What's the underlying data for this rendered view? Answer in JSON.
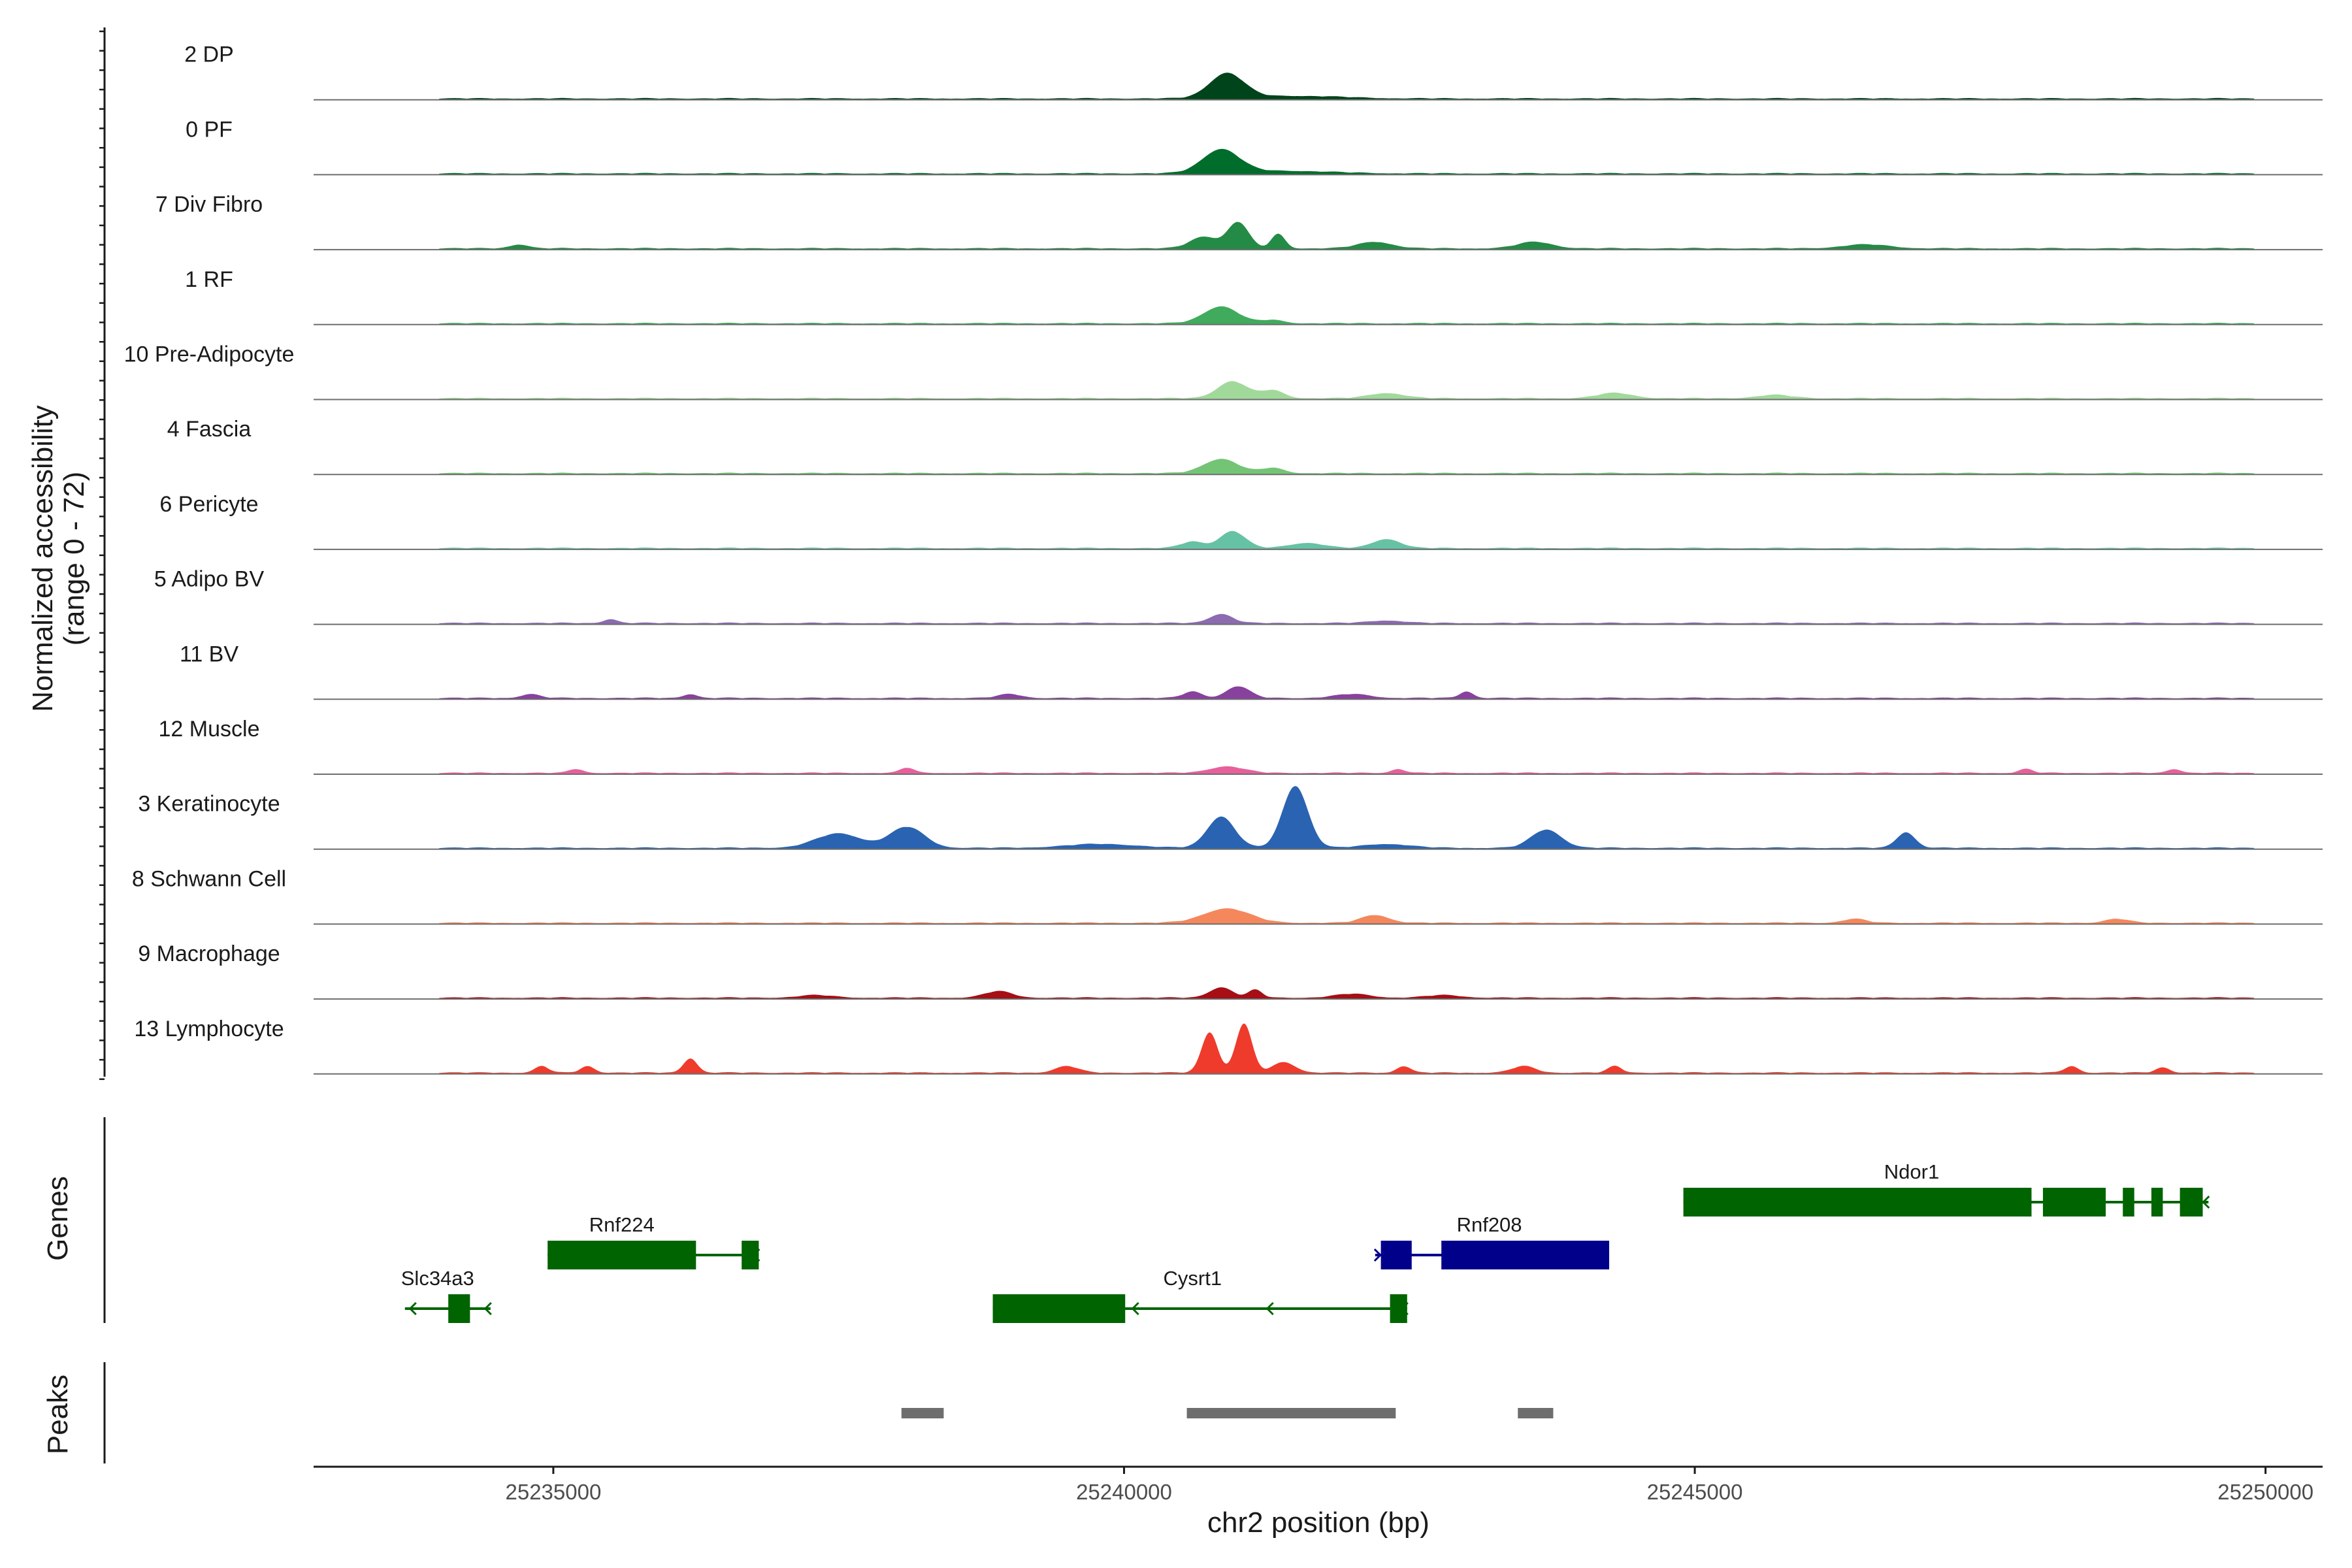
{
  "chart_data": {
    "type": "area",
    "title": "",
    "xlabel": "chr2 position (bp)",
    "ylabel": "Normalized accessibility",
    "ylabel_range": "(range 0 - 72)",
    "ylim": [
      0,
      72
    ],
    "xlim": [
      25232900,
      25250500
    ],
    "x_ticks": [
      25235000,
      25240000,
      25245000,
      25250000
    ],
    "x_tick_labels": [
      "25235000",
      "25240000",
      "25245000",
      "25250000"
    ],
    "tracks": [
      {
        "name": "2 DP",
        "color": "#00441b",
        "peaks": [
          [
            25240900,
            38,
            150
          ],
          [
            25241500,
            4,
            400
          ]
        ]
      },
      {
        "name": "0 PF",
        "color": "#006d2c",
        "peaks": [
          [
            25240850,
            36,
            160
          ],
          [
            25241400,
            4,
            400
          ]
        ]
      },
      {
        "name": "7 Div Fibro",
        "color": "#238b45",
        "peaks": [
          [
            25241000,
            40,
            90
          ],
          [
            25240700,
            18,
            120
          ],
          [
            25241350,
            22,
            60
          ],
          [
            25242200,
            10,
            150
          ],
          [
            25243600,
            10,
            150
          ],
          [
            25246500,
            6,
            200
          ],
          [
            25234700,
            6,
            80
          ]
        ]
      },
      {
        "name": "1 RF",
        "color": "#41ab5d",
        "peaks": [
          [
            25240850,
            26,
            150
          ],
          [
            25241300,
            5,
            100
          ]
        ]
      },
      {
        "name": "10 Pre-Adipocyte",
        "color": "#a1d99b",
        "peaks": [
          [
            25240950,
            26,
            130
          ],
          [
            25241300,
            12,
            100
          ],
          [
            25242300,
            8,
            150
          ],
          [
            25244300,
            8,
            150
          ],
          [
            25245700,
            5,
            150
          ]
        ]
      },
      {
        "name": "4 Fascia",
        "color": "#74c476",
        "peaks": [
          [
            25240850,
            22,
            150
          ],
          [
            25241300,
            8,
            100
          ]
        ]
      },
      {
        "name": "6 Pericyte",
        "color": "#66c2a4",
        "peaks": [
          [
            25240950,
            26,
            110
          ],
          [
            25240600,
            10,
            100
          ],
          [
            25242300,
            14,
            120
          ],
          [
            25241600,
            8,
            150
          ]
        ]
      },
      {
        "name": "5 Adipo BV",
        "color": "#8c6bb1",
        "peaks": [
          [
            25240850,
            14,
            100
          ],
          [
            25235500,
            6,
            60
          ],
          [
            25242300,
            4,
            150
          ]
        ]
      },
      {
        "name": "11 BV",
        "color": "#88419d",
        "peaks": [
          [
            25241000,
            18,
            100
          ],
          [
            25240600,
            10,
            80
          ],
          [
            25242000,
            6,
            150
          ],
          [
            25243000,
            10,
            60
          ],
          [
            25234800,
            6,
            80
          ],
          [
            25236200,
            6,
            60
          ],
          [
            25233600,
            5,
            60
          ],
          [
            25239000,
            6,
            100
          ]
        ]
      },
      {
        "name": "12 Muscle",
        "color": "#e7609b",
        "peaks": [
          [
            25240900,
            10,
            150
          ],
          [
            25235200,
            6,
            60
          ],
          [
            25238100,
            8,
            60
          ],
          [
            25242400,
            6,
            60
          ],
          [
            25247900,
            6,
            60
          ],
          [
            25249200,
            6,
            60
          ]
        ]
      },
      {
        "name": "3 Keratinocyte",
        "color": "#2a63b1",
        "peaks": [
          [
            25241500,
            95,
            110
          ],
          [
            25240850,
            48,
            120
          ],
          [
            25237500,
            22,
            200
          ],
          [
            25238100,
            32,
            150
          ],
          [
            25243700,
            28,
            130
          ],
          [
            25246850,
            24,
            80
          ],
          [
            25239800,
            6,
            300
          ],
          [
            25242300,
            6,
            200
          ]
        ]
      },
      {
        "name": "8 Schwann Cell",
        "color": "#f5875c",
        "peaks": [
          [
            25240900,
            22,
            200
          ],
          [
            25242200,
            12,
            120
          ],
          [
            25246400,
            6,
            100
          ],
          [
            25248700,
            6,
            100
          ]
        ]
      },
      {
        "name": "9 Macrophage",
        "color": "#a50f15",
        "peaks": [
          [
            25240850,
            16,
            100
          ],
          [
            25241150,
            12,
            60
          ],
          [
            25238900,
            10,
            120
          ],
          [
            25242000,
            6,
            150
          ],
          [
            25242800,
            4,
            150
          ],
          [
            25237300,
            4,
            150
          ]
        ]
      },
      {
        "name": "13 Lymphocyte",
        "color": "#ef3b2c",
        "peaks": [
          [
            25241050,
            75,
            70
          ],
          [
            25240750,
            62,
            70
          ],
          [
            25236200,
            22,
            60
          ],
          [
            25241400,
            16,
            100
          ],
          [
            25234900,
            10,
            60
          ],
          [
            25235300,
            10,
            60
          ],
          [
            25239500,
            10,
            100
          ],
          [
            25242450,
            10,
            60
          ],
          [
            25243500,
            10,
            100
          ],
          [
            25244300,
            10,
            60
          ],
          [
            25248300,
            10,
            60
          ],
          [
            25249100,
            8,
            60
          ]
        ]
      }
    ],
    "genes": [
      {
        "name": "Ndor1",
        "strand": "-",
        "color": "#006400",
        "row": 0,
        "start": 25244900,
        "end": 25249500,
        "exons": [
          [
            25244900,
            25247950
          ],
          [
            25248050,
            25248600
          ],
          [
            25248750,
            25248850
          ],
          [
            25249000,
            25249100
          ],
          [
            25249250,
            25249450
          ]
        ]
      },
      {
        "name": "Rnf224",
        "strand": "-",
        "color": "#006400",
        "row": 1,
        "start": 25234950,
        "end": 25236800,
        "exons": [
          [
            25234950,
            25236250
          ],
          [
            25236650,
            25236800
          ]
        ]
      },
      {
        "name": "Rnf208",
        "strand": "+",
        "color": "#00008b",
        "row": 1,
        "start": 25242200,
        "end": 25244250,
        "exons": [
          [
            25242250,
            25242520
          ],
          [
            25242780,
            25244250
          ]
        ]
      },
      {
        "name": "Cysrt1",
        "strand": "-",
        "color": "#006400",
        "row": 2,
        "start": 25238850,
        "end": 25242480,
        "exons": [
          [
            25238850,
            25240010
          ],
          [
            25242330,
            25242480
          ]
        ]
      },
      {
        "name": "Slc34a3",
        "strand": "-",
        "color": "#006400",
        "row": 2,
        "start": 25233700,
        "end": 25234450,
        "exons": [
          [
            25234080,
            25234270
          ]
        ]
      }
    ],
    "peak_regions": [
      [
        25238050,
        25238420
      ],
      [
        25240550,
        25242380
      ],
      [
        25243450,
        25243760
      ]
    ],
    "panel_labels": [
      "Genes",
      "Peaks"
    ],
    "grid": false,
    "legend": "none"
  }
}
